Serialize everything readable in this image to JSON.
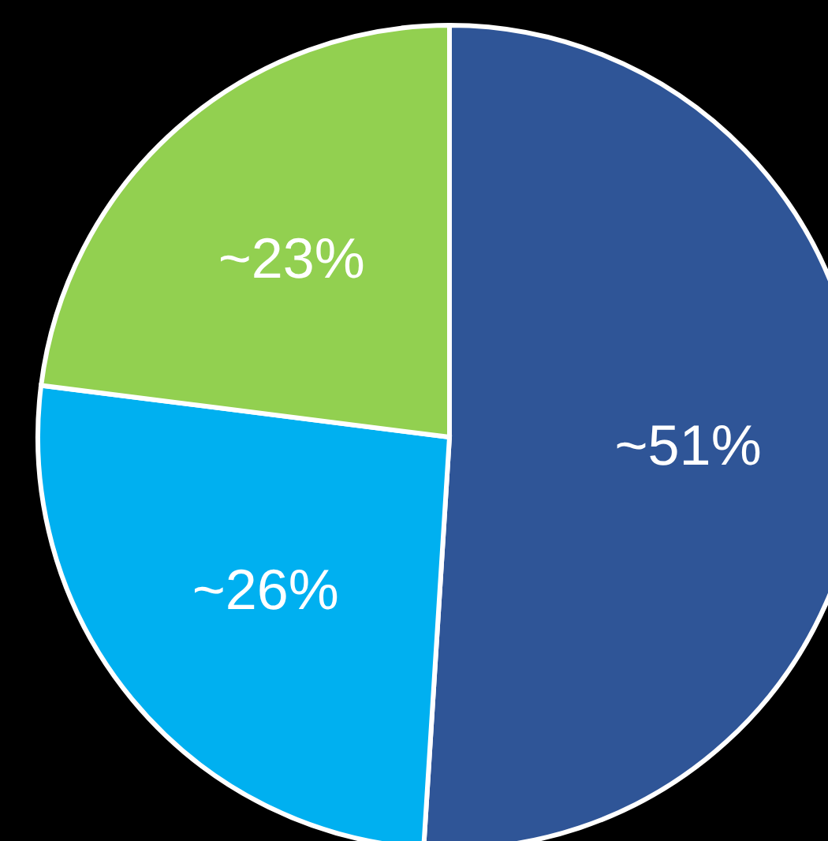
{
  "chart_data": {
    "type": "pie",
    "categories": [
      null,
      null,
      null
    ],
    "values": [
      51,
      26,
      23
    ],
    "colors": [
      "#2f5597",
      "#00b0f0",
      "#92d050"
    ],
    "value_labels": [
      "~51%",
      "~26%",
      "~23%"
    ]
  }
}
